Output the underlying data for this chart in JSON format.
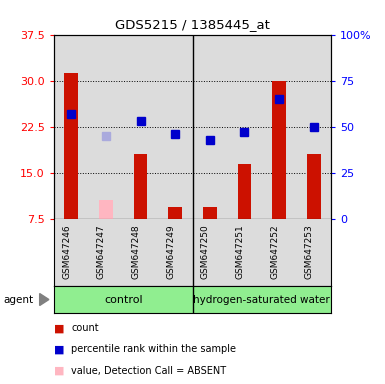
{
  "title": "GDS5215 / 1385445_at",
  "samples": [
    "GSM647246",
    "GSM647247",
    "GSM647248",
    "GSM647249",
    "GSM647250",
    "GSM647251",
    "GSM647252",
    "GSM647253"
  ],
  "count_values": [
    31.3,
    null,
    18.0,
    9.5,
    9.5,
    16.5,
    30.0,
    18.0
  ],
  "count_absent_values": [
    null,
    10.5,
    null,
    null,
    null,
    null,
    null,
    null
  ],
  "rank_pct": [
    57.0,
    null,
    53.0,
    46.0,
    43.0,
    47.0,
    65.0,
    50.0
  ],
  "rank_pct_absent": [
    null,
    45.0,
    null,
    null,
    null,
    null,
    null,
    null
  ],
  "ylim_left": [
    7.5,
    37.5
  ],
  "ylim_right": [
    0,
    100
  ],
  "left_ticks": [
    7.5,
    15.0,
    22.5,
    30.0,
    37.5
  ],
  "right_ticks": [
    0,
    25,
    50,
    75,
    100
  ],
  "right_tick_labels": [
    "0",
    "25",
    "50",
    "75",
    "100%"
  ],
  "bar_color": "#CC1100",
  "bar_absent_color": "#FFB6C1",
  "rank_color": "#0000CC",
  "rank_absent_color": "#AAAADD",
  "plot_bg_color": "#DCDCDC",
  "label_bg_color": "#DCDCDC",
  "group_bg_color": "#90EE90",
  "bar_width": 0.4,
  "marker_size": 6,
  "n_control": 4,
  "n_hydrogen": 4
}
